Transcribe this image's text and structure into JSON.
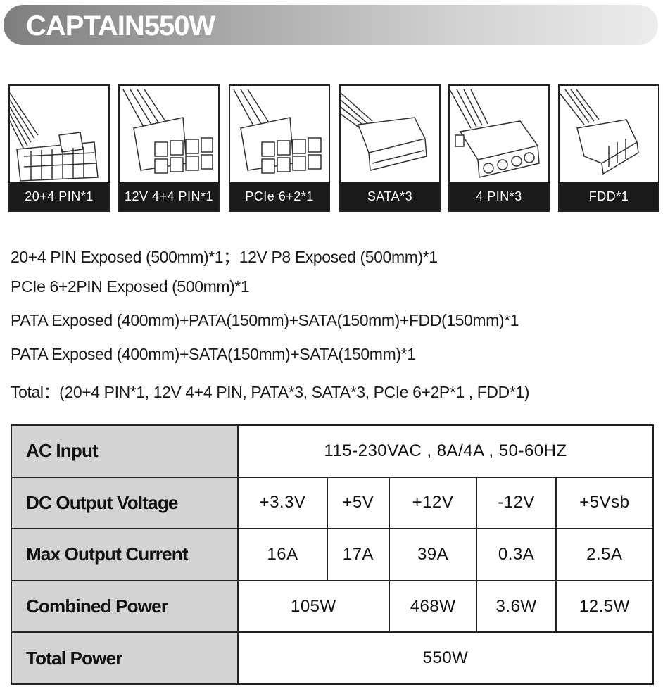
{
  "header": {
    "title": "CAPTAIN550W"
  },
  "connectors": [
    {
      "label": "20+4 PIN*1",
      "icon": "atx-24pin-connector-icon"
    },
    {
      "label": "12V 4+4 PIN*1",
      "icon": "eps-8pin-connector-icon"
    },
    {
      "label": "PCIe 6+2*1",
      "icon": "pcie-8pin-connector-icon"
    },
    {
      "label": "SATA*3",
      "icon": "sata-connector-icon"
    },
    {
      "label": "4 PIN*3",
      "icon": "molex-connector-icon"
    },
    {
      "label": "FDD*1",
      "icon": "fdd-connector-icon"
    }
  ],
  "specs": [
    "20+4 PIN Exposed (500mm)*1；12V P8 Exposed (500mm)*1",
    "PCIe 6+2PIN Exposed (500mm)*1",
    "PATA Exposed (400mm)+PATA(150mm)+SATA(150mm)+FDD(150mm)*1",
    "PATA Exposed (400mm)+SATA(150mm)+SATA(150mm)*1",
    "Total：(20+4 PIN*1, 12V 4+4 PIN, PATA*3, SATA*3, PCIe 6+2P*1 , FDD*1)"
  ],
  "table": {
    "ac_input": {
      "label": "AC Input",
      "value": "115-230VAC , 8A/4A , 50-60HZ"
    },
    "dc_output": {
      "label": "DC Output Voltage",
      "values": [
        "+3.3V",
        "+5V",
        "+12V",
        "-12V",
        "+5Vsb"
      ]
    },
    "max_current": {
      "label": "Max Output Current",
      "values": [
        "16A",
        "17A",
        "39A",
        "0.3A",
        "2.5A"
      ]
    },
    "combined": {
      "label": "Combined Power",
      "values": [
        "105W",
        "468W",
        "3.6W",
        "12.5W"
      ]
    },
    "total": {
      "label": "Total Power",
      "value": "550W"
    }
  }
}
